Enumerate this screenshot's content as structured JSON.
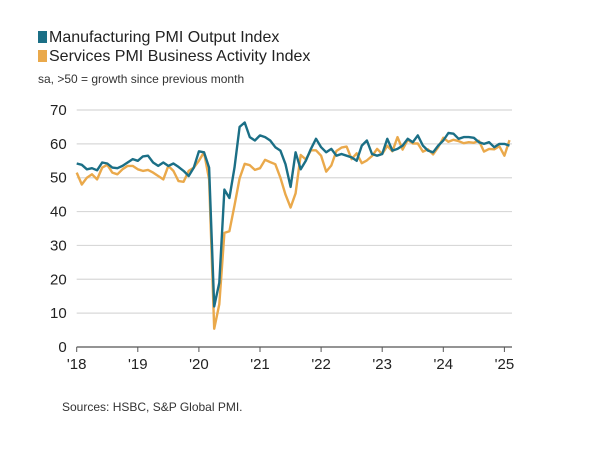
{
  "chart_data": {
    "type": "line",
    "title": "",
    "subtitle": "sa, >50 = growth since previous month",
    "source": "Sources: HSBC, S&P Global PMI.",
    "ylim": [
      0,
      70
    ],
    "yticks": [
      0,
      10,
      20,
      30,
      40,
      50,
      60,
      70
    ],
    "xticks": [
      "'18",
      "'19",
      "'20",
      "'21",
      "'22",
      "'23",
      "'24",
      "'25"
    ],
    "x_start": "2018-01",
    "x_frequency": "monthly",
    "grid": "horizontal",
    "legend": "top-left",
    "series": [
      {
        "name": "Manufacturing PMI Output Index",
        "color": "#1b6f86",
        "values": [
          54.2,
          53.8,
          52.5,
          52.8,
          52.2,
          54.5,
          54.2,
          53,
          52.8,
          53.5,
          54.5,
          55.5,
          55,
          56.3,
          56.5,
          54.5,
          53.5,
          54.5,
          53.5,
          54.2,
          53.2,
          52,
          50.5,
          53,
          57.8,
          57.5,
          53,
          12,
          19,
          46.5,
          44,
          53,
          65,
          66.3,
          62,
          61,
          62.5,
          62,
          61,
          59,
          58,
          54,
          47.3,
          57.5,
          52.5,
          55,
          58.5,
          61.5,
          59,
          57.5,
          58.5,
          56.5,
          57,
          56.5,
          56,
          55,
          59.5,
          61,
          57,
          56.5,
          57,
          61.5,
          58,
          58.5,
          59.5,
          61.5,
          60.5,
          62.5,
          59.5,
          58,
          57.5,
          59.5,
          61,
          63.2,
          63,
          61.5,
          62,
          62,
          61.8,
          60.5,
          60,
          60.5,
          59,
          60,
          60,
          59.5
        ]
      },
      {
        "name": "Services PMI Business Activity Index",
        "color": "#eaa94b",
        "values": [
          51.5,
          48,
          50,
          51,
          49.5,
          53,
          53.8,
          51.5,
          51,
          52.5,
          53.5,
          53.5,
          52.5,
          52,
          52.3,
          51.5,
          50.5,
          49.5,
          53.5,
          52,
          49,
          48.8,
          52,
          53,
          55,
          57.5,
          49.5,
          5.4,
          12.6,
          33.7,
          34.2,
          41.8,
          49.8,
          54.1,
          53.7,
          52.3,
          52.8,
          55.3,
          54.6,
          54,
          50,
          45,
          41.2,
          45.4,
          56.7,
          55.4,
          58.1,
          58.1,
          56.5,
          51.8,
          53.6,
          57.9,
          58.9,
          59.2,
          55.5,
          57.2,
          54.3,
          55.1,
          56.4,
          58.5,
          57,
          59.4,
          57.8,
          62,
          58.3,
          61.2,
          60.1,
          60.1,
          57.7,
          58.4,
          56.9,
          59,
          61.8,
          60.6,
          61.2,
          60.8,
          60.2,
          60.5,
          60.3,
          60.9,
          57.7,
          58.5,
          58.4,
          59.3,
          56.5,
          61.1
        ]
      }
    ]
  }
}
